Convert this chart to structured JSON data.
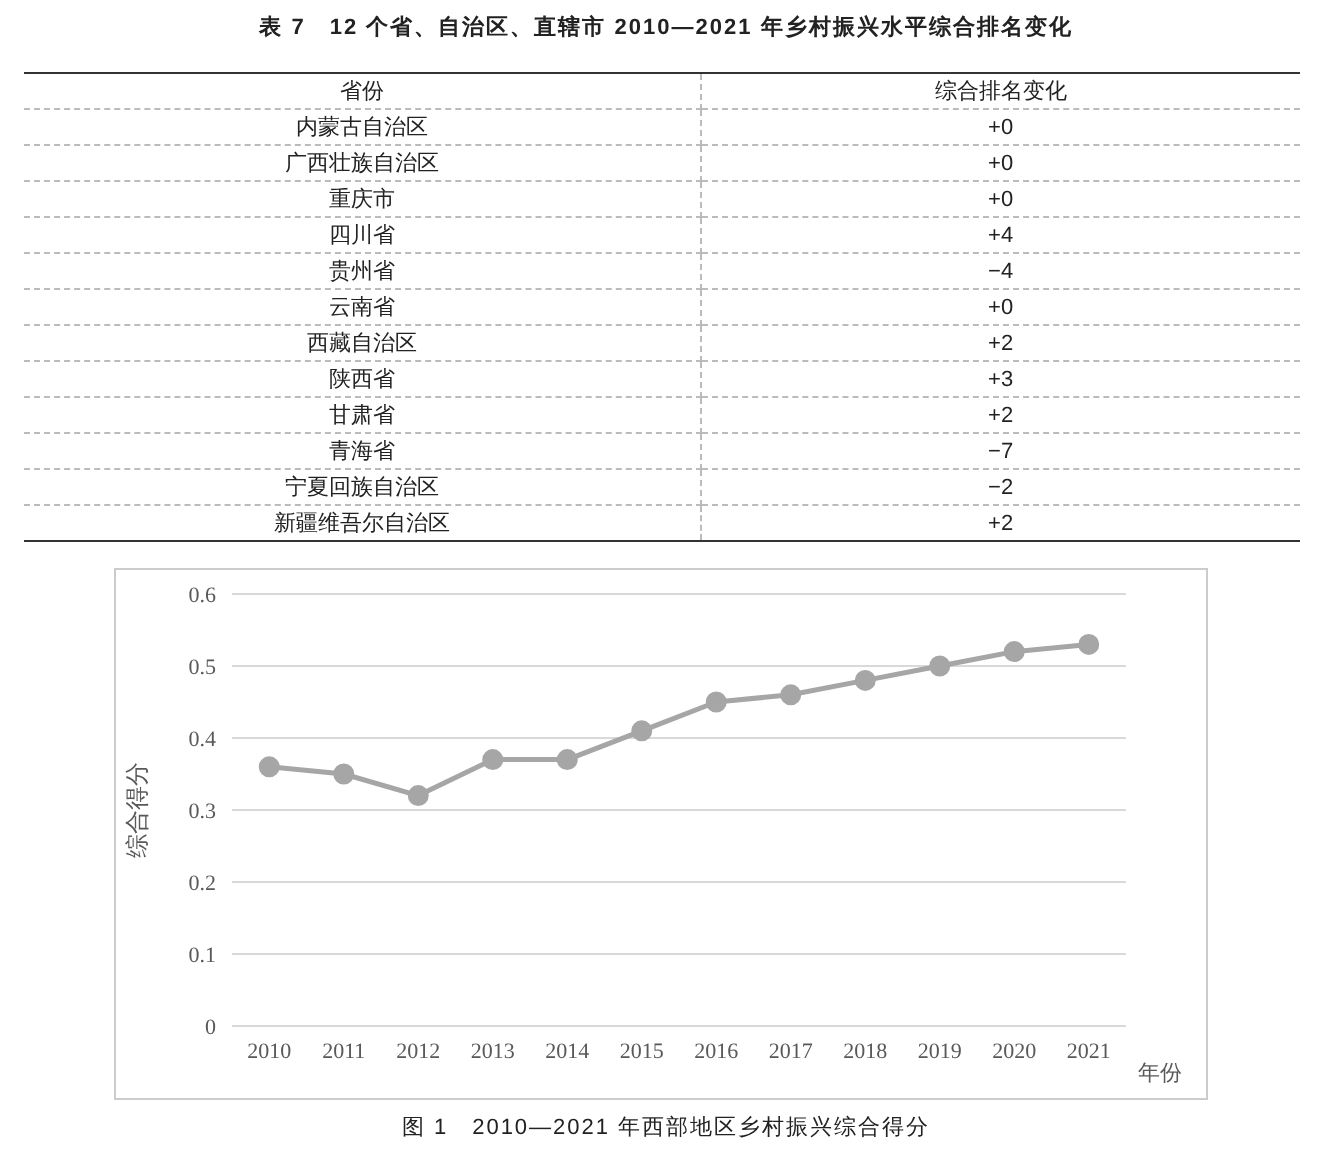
{
  "chart_data": [
    {
      "type": "other",
      "title": "表 7　12 个省、自治区、直辖市 2010—2021 年乡村振兴水平综合排名变化",
      "xlabel": "省份",
      "ylabel": "综合排名变化",
      "categories": [
        "内蒙古自治区",
        "广西壮族自治区",
        "重庆市",
        "四川省",
        "贵州省",
        "云南省",
        "西藏自治区",
        "陕西省",
        "甘肃省",
        "青海省",
        "宁夏回族自治区",
        "新疆维吾尔自治区"
      ],
      "value_labels": [
        "+0",
        "+0",
        "+0",
        "+4",
        "−4",
        "+0",
        "+2",
        "+3",
        "+2",
        "−7",
        "−2",
        "+2"
      ]
    },
    {
      "type": "line",
      "title": "图 1　2010—2021 年西部地区乡村振兴综合得分",
      "xlabel": "年份",
      "ylabel": "综合得分",
      "categories": [
        "2010",
        "2011",
        "2012",
        "2013",
        "2014",
        "2015",
        "2016",
        "2017",
        "2018",
        "2019",
        "2020",
        "2021"
      ],
      "series": [
        {
          "color": "#a6a6a6",
          "values": [
            0.36,
            0.35,
            0.32,
            0.37,
            0.37,
            0.41,
            0.45,
            0.46,
            0.48,
            0.5,
            0.52,
            0.53
          ]
        }
      ],
      "ylim": [
        0,
        0.6
      ],
      "yticks": [
        0,
        0.1,
        0.2,
        0.3,
        0.4,
        0.5,
        0.6
      ],
      "grid": "y",
      "marker": "circle",
      "line_style": "solid"
    }
  ]
}
